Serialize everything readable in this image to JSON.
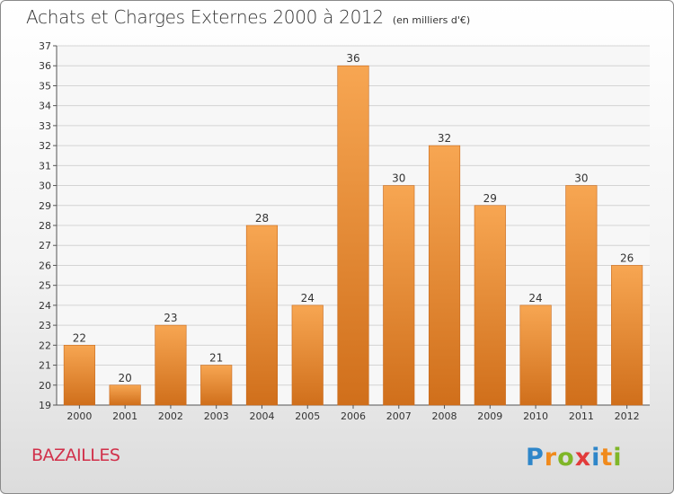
{
  "header": {
    "title": "Achats et Charges Externes 2000 à 2012",
    "unit": "(en milliers d'€)"
  },
  "footer": {
    "commune": "BAZAILLES",
    "logo_text": "Proxiti"
  },
  "colors": {
    "bar_top": "#f7a652",
    "bar_bottom": "#d06f1b",
    "commune": "#d1304a"
  },
  "chart_data": {
    "type": "bar",
    "title": "Achats et Charges Externes 2000 à 2012",
    "subtitle": "(en milliers d'€)",
    "categories": [
      "2000",
      "2001",
      "2002",
      "2003",
      "2004",
      "2005",
      "2006",
      "2007",
      "2008",
      "2009",
      "2010",
      "2011",
      "2012"
    ],
    "values": [
      22,
      20,
      23,
      21,
      28,
      24,
      36,
      30,
      32,
      29,
      24,
      30,
      26
    ],
    "data_labels": [
      "22",
      "20",
      "23",
      "21",
      "28",
      "24",
      "36",
      "30",
      "32",
      "29",
      "24",
      "30",
      "26"
    ],
    "ylim": [
      19,
      37
    ],
    "yticks": [
      19,
      20,
      21,
      22,
      23,
      24,
      25,
      26,
      27,
      28,
      29,
      30,
      31,
      32,
      33,
      34,
      35,
      36,
      37
    ],
    "grid": true,
    "legend": "none"
  }
}
